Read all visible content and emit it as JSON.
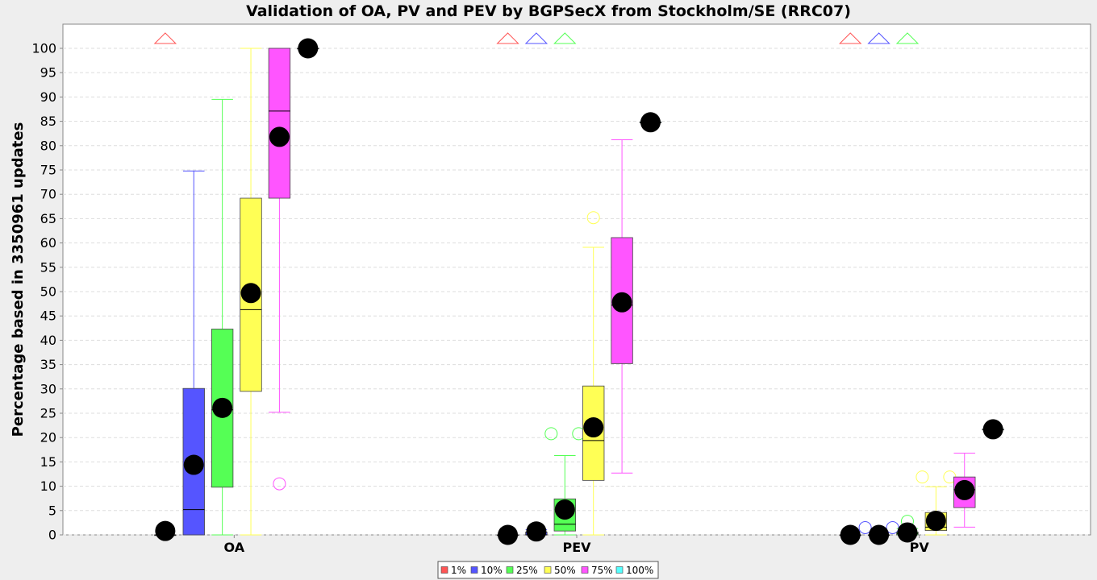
{
  "chart_data": {
    "type": "boxplot",
    "title": "Validation of OA, PV and PEV by BGPSecX from Stockholm/SE (RRC07)",
    "xlabel": "",
    "ylabel": "Percentage based in 3350961 updates",
    "ylim": [
      0,
      105
    ],
    "yticks": [
      0,
      5,
      10,
      15,
      20,
      25,
      30,
      35,
      40,
      45,
      50,
      55,
      60,
      65,
      70,
      75,
      80,
      85,
      90,
      95,
      100
    ],
    "grid": true,
    "legend_position": "bottom",
    "categories": [
      "OA",
      "PEV",
      "PV"
    ],
    "series": [
      {
        "name": "1%",
        "color": "#ff5555"
      },
      {
        "name": "10%",
        "color": "#5555ff"
      },
      {
        "name": "25%",
        "color": "#55ff55"
      },
      {
        "name": "50%",
        "color": "#ffff55"
      },
      {
        "name": "75%",
        "color": "#ff55ff"
      },
      {
        "name": "100%",
        "color": "#55ffff"
      }
    ],
    "boxes": [
      {
        "category": "OA",
        "series": "1%",
        "q1": 0,
        "median": 0,
        "q3": 0,
        "whisker_low": 0,
        "whisker_high": 0,
        "mean": 0.8,
        "outliers": [],
        "far_out_above": true
      },
      {
        "category": "OA",
        "series": "10%",
        "q1": 0,
        "median": 5.2,
        "q3": 30.1,
        "whisker_low": 0,
        "whisker_high": 74.8,
        "mean": 14.4,
        "outliers": [],
        "far_out_above": false
      },
      {
        "category": "OA",
        "series": "25%",
        "q1": 9.8,
        "median": 25.7,
        "q3": 42.3,
        "whisker_low": 0,
        "whisker_high": 89.5,
        "mean": 26.1,
        "outliers": [],
        "far_out_above": false
      },
      {
        "category": "OA",
        "series": "50%",
        "q1": 29.5,
        "median": 46.3,
        "q3": 69.2,
        "whisker_low": 0,
        "whisker_high": 100,
        "mean": 49.7,
        "outliers": [],
        "far_out_above": false
      },
      {
        "category": "OA",
        "series": "75%",
        "q1": 69.2,
        "median": 87.1,
        "q3": 100,
        "whisker_low": 25.2,
        "whisker_high": 100,
        "mean": 81.8,
        "outliers": [
          10.5
        ],
        "far_out_above": false
      },
      {
        "category": "OA",
        "series": "100%",
        "q1": 100,
        "median": 100,
        "q3": 100,
        "whisker_low": 100,
        "whisker_high": 100,
        "mean": 100,
        "outliers": [],
        "far_out_above": false
      },
      {
        "category": "PEV",
        "series": "1%",
        "q1": 0,
        "median": 0,
        "q3": 0,
        "whisker_low": 0,
        "whisker_high": 0,
        "mean": 0,
        "outliers": [],
        "far_out_above": true
      },
      {
        "category": "PEV",
        "series": "10%",
        "q1": 0,
        "median": 0,
        "q3": 0.6,
        "whisker_low": 0,
        "whisker_high": 1.1,
        "mean": 0.7,
        "outliers": [],
        "far_out_above": true
      },
      {
        "category": "PEV",
        "series": "25%",
        "q1": 0.8,
        "median": 2.2,
        "q3": 7.4,
        "whisker_low": 0,
        "whisker_high": 16.3,
        "mean": 5.2,
        "outliers": [
          20.8,
          20.8
        ],
        "far_out_above": true
      },
      {
        "category": "PEV",
        "series": "50%",
        "q1": 11.2,
        "median": 19.4,
        "q3": 30.6,
        "whisker_low": 0,
        "whisker_high": 59.1,
        "mean": 22.1,
        "outliers": [
          65.2
        ],
        "far_out_above": false
      },
      {
        "category": "PEV",
        "series": "75%",
        "q1": 35.2,
        "median": 47.2,
        "q3": 61.1,
        "whisker_low": 12.7,
        "whisker_high": 81.2,
        "mean": 47.8,
        "outliers": [],
        "far_out_above": false
      },
      {
        "category": "PEV",
        "series": "100%",
        "q1": 84.8,
        "median": 84.8,
        "q3": 84.8,
        "whisker_low": 84.8,
        "whisker_high": 84.8,
        "mean": 84.8,
        "outliers": [],
        "far_out_above": false
      },
      {
        "category": "PV",
        "series": "1%",
        "q1": 0,
        "median": 0,
        "q3": 0,
        "whisker_low": 0,
        "whisker_high": 0,
        "mean": 0,
        "outliers": [],
        "far_out_above": true
      },
      {
        "category": "PV",
        "series": "10%",
        "q1": 0,
        "median": 0,
        "q3": 0,
        "whisker_low": 0,
        "whisker_high": 0,
        "mean": 0,
        "outliers": [
          1.5,
          1.5
        ],
        "far_out_above": true
      },
      {
        "category": "PV",
        "series": "25%",
        "q1": 0,
        "median": 0.3,
        "q3": 0.6,
        "whisker_low": 0,
        "whisker_high": 1.3,
        "mean": 0.5,
        "outliers": [
          2.8
        ],
        "far_out_above": true
      },
      {
        "category": "PV",
        "series": "50%",
        "q1": 0.9,
        "median": 1.6,
        "q3": 4.6,
        "whisker_low": 0,
        "whisker_high": 9.9,
        "mean": 2.9,
        "outliers": [
          11.9,
          11.9
        ],
        "far_out_above": false
      },
      {
        "category": "PV",
        "series": "75%",
        "q1": 5.6,
        "median": 9.3,
        "q3": 11.9,
        "whisker_low": 1.6,
        "whisker_high": 16.8,
        "mean": 9.2,
        "outliers": [],
        "far_out_above": false
      },
      {
        "category": "PV",
        "series": "100%",
        "q1": 21.7,
        "median": 21.7,
        "q3": 21.7,
        "whisker_low": 21.7,
        "whisker_high": 21.7,
        "mean": 21.7,
        "outliers": [],
        "far_out_above": false
      }
    ]
  }
}
